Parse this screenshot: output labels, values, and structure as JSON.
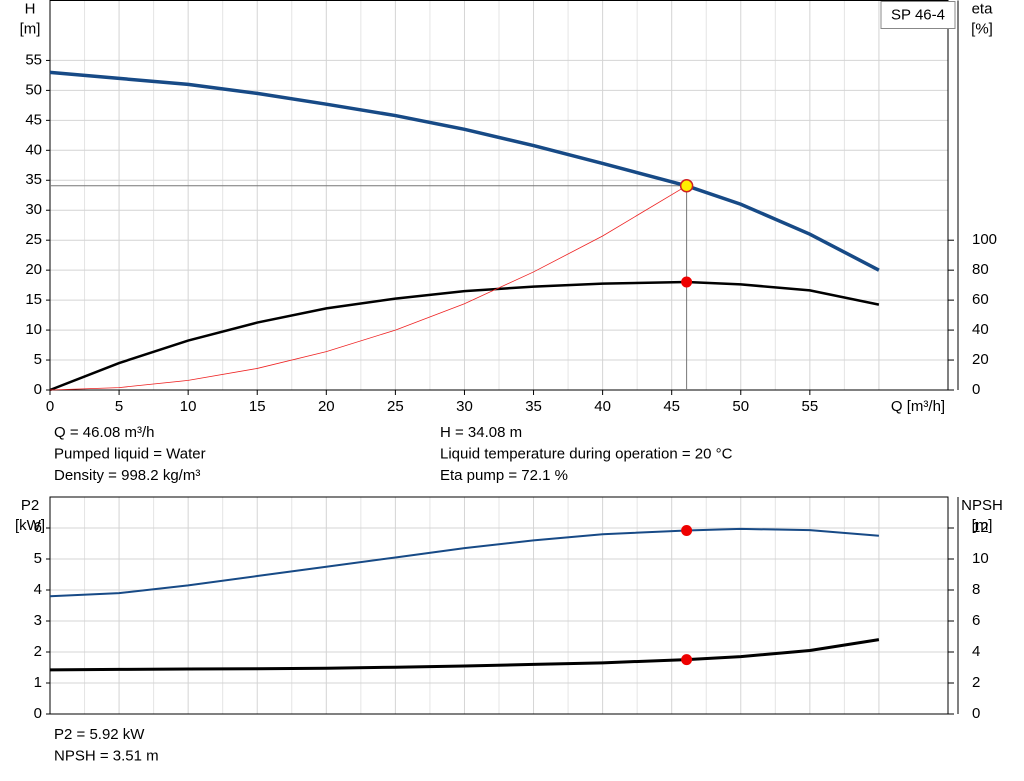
{
  "chart_data": [
    {
      "type": "line",
      "model": "SP 46-4",
      "ylabel": [
        "H",
        "[m]"
      ],
      "y2label": [
        "eta",
        "[%]"
      ],
      "xlabel": "Q [m³/h]",
      "xlim": [
        0,
        65
      ],
      "xticks": [
        0,
        5,
        10,
        15,
        20,
        25,
        30,
        35,
        40,
        45,
        50,
        55
      ],
      "ylim": [
        0,
        65
      ],
      "yticks": [
        0,
        5,
        10,
        15,
        20,
        25,
        30,
        35,
        40,
        45,
        50,
        55
      ],
      "y2lim": [
        0,
        260
      ],
      "y2ticks": [
        0,
        20,
        40,
        60,
        80,
        100
      ],
      "grid": true,
      "x": [
        0,
        5,
        10,
        15,
        20,
        25,
        30,
        35,
        40,
        46.08,
        50,
        55,
        60
      ],
      "series": [
        {
          "color": "#174a86",
          "axis": "y",
          "width": 3.5,
          "marker": "#ffee00",
          "values": [
            53,
            52,
            51,
            49.5,
            47.7,
            45.8,
            43.5,
            40.8,
            37.8,
            34.08,
            31,
            26,
            20
          ]
        },
        {
          "color": "#000000",
          "axis": "y2",
          "width": 2.5,
          "marker": "#ee0000",
          "values": [
            0,
            18,
            33,
            45,
            54.5,
            61,
            66,
            69,
            71,
            72.1,
            70.5,
            66.5,
            57
          ]
        },
        {
          "color": "#ee2222",
          "axis": "y",
          "width": 0.8,
          "values": [
            0,
            0.4,
            1.6,
            3.6,
            6.4,
            10,
            14.4,
            19.7,
            25.7,
            34.08,
            null,
            null,
            null
          ]
        }
      ],
      "operating_point": {
        "x": 46.08,
        "y": 34.08
      },
      "annotations": [
        [
          "Q = 46.08 m³/h",
          "Pumped liquid = Water",
          "Density = 998.2 kg/m³"
        ],
        [
          "H = 34.08 m",
          "Liquid temperature during operation = 20 °C",
          "Eta pump = 72.1 %"
        ]
      ]
    },
    {
      "type": "line",
      "ylabel": [
        "P2",
        "[kW]"
      ],
      "y2label": [
        "NPSH",
        "[m]"
      ],
      "xlim": [
        0,
        65
      ],
      "ylim": [
        0,
        7
      ],
      "yticks": [
        0,
        1,
        2,
        3,
        4,
        5,
        6
      ],
      "y2lim": [
        0,
        14
      ],
      "y2ticks": [
        0,
        2,
        4,
        6,
        8,
        10,
        12
      ],
      "grid": true,
      "x": [
        0,
        5,
        10,
        15,
        20,
        25,
        30,
        35,
        40,
        46.08,
        50,
        55,
        60
      ],
      "series": [
        {
          "color": "#174a86",
          "axis": "y",
          "width": 2,
          "marker": "#ee0000",
          "values": [
            3.8,
            3.9,
            4.15,
            4.45,
            4.75,
            5.05,
            5.35,
            5.6,
            5.8,
            5.92,
            5.97,
            5.93,
            5.75
          ]
        },
        {
          "color": "#000000",
          "axis": "y2",
          "width": 3,
          "marker": "#ee0000",
          "values": [
            2.85,
            2.88,
            2.9,
            2.92,
            2.95,
            3.02,
            3.1,
            3.2,
            3.3,
            3.51,
            3.7,
            4.1,
            4.8
          ]
        }
      ],
      "annotations": [
        [
          "P2 = 5.92 kW",
          "NPSH = 3.51 m"
        ]
      ]
    }
  ]
}
